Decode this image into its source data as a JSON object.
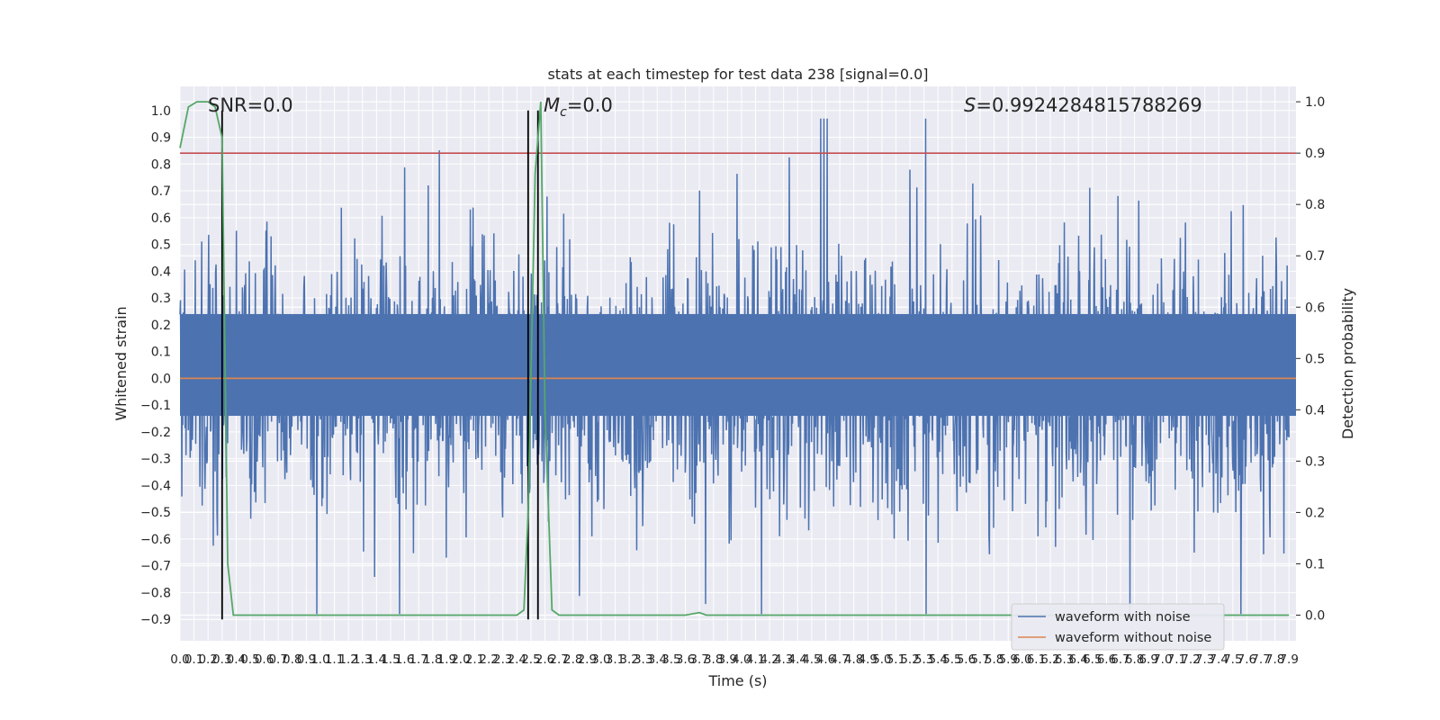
{
  "chart_data": {
    "type": "line",
    "title": "stats at each timestep for test data 238 [signal=0.0]",
    "xlabel": "Time (s)",
    "ylabel_left": "Whitened strain",
    "ylabel_right": "Detection probability",
    "xlim": [
      0.0,
      7.95
    ],
    "ylim_left": [
      -0.98,
      1.09
    ],
    "ylim_right": [
      -0.05,
      1.03
    ],
    "x_ticks": [
      "0.0",
      "0.1",
      "0.2",
      "0.3",
      "0.4",
      "0.5",
      "0.6",
      "0.7",
      "0.8",
      "0.9",
      "1.0",
      "1.1",
      "1.2",
      "1.3",
      "1.4",
      "1.5",
      "1.6",
      "1.7",
      "1.8",
      "1.9",
      "2.0",
      "2.1",
      "2.2",
      "2.3",
      "2.4",
      "2.5",
      "2.6",
      "2.7",
      "2.8",
      "2.9",
      "3.0",
      "3.1",
      "3.2",
      "3.3",
      "3.4",
      "3.5",
      "3.6",
      "3.7",
      "3.8",
      "3.9",
      "4.0",
      "4.1",
      "4.2",
      "4.3",
      "4.4",
      "4.5",
      "4.6",
      "4.7",
      "4.8",
      "4.9",
      "5.0",
      "5.1",
      "5.2",
      "5.3",
      "5.4",
      "5.5",
      "5.6",
      "5.7",
      "5.8",
      "5.9",
      "6.0",
      "6.1",
      "6.2",
      "6.3",
      "6.4",
      "6.5",
      "6.6",
      "6.7",
      "6.8",
      "6.9",
      "7.0",
      "7.1",
      "7.2",
      "7.3",
      "7.4",
      "7.5",
      "7.6",
      "7.7",
      "7.8",
      "7.9"
    ],
    "y_ticks_left": [
      "-0.9",
      "-0.8",
      "-0.7",
      "-0.6",
      "-0.5",
      "-0.4",
      "-0.3",
      "-0.2",
      "-0.1",
      "0.0",
      "0.1",
      "0.2",
      "0.3",
      "0.4",
      "0.5",
      "0.6",
      "0.7",
      "0.8",
      "0.9",
      "1.0"
    ],
    "y_ticks_right": [
      "0.0",
      "0.1",
      "0.2",
      "0.3",
      "0.4",
      "0.5",
      "0.6",
      "0.7",
      "0.8",
      "0.9",
      "1.0"
    ],
    "series": [
      {
        "name": "waveform with noise",
        "color": "#4c72b0",
        "description": "dense noise waveform, roughly within -0.88 to 1.0, max 1.0 near t=4.6 s"
      },
      {
        "name": "waveform without noise",
        "color": "#dd8452",
        "values": "constant 0.0"
      },
      {
        "name": "Detection probability",
        "color": "#55a868",
        "axis": "right",
        "x": [
          0.0,
          0.06,
          0.12,
          0.2,
          0.25,
          0.3,
          0.34,
          0.38,
          0.45,
          1.0,
          2.0,
          2.4,
          2.45,
          2.48,
          2.53,
          2.57,
          2.6,
          2.65,
          2.7,
          3.0,
          3.6,
          3.7,
          3.75,
          4.0,
          5.0,
          6.0,
          7.0,
          7.9
        ],
        "values": [
          0.91,
          0.99,
          1.0,
          1.0,
          0.99,
          0.93,
          0.1,
          0.0,
          0.0,
          0.0,
          0.0,
          0.0,
          0.01,
          0.2,
          0.86,
          1.0,
          0.4,
          0.01,
          0.0,
          0.0,
          0.0,
          0.005,
          0.0,
          0.0,
          0.0,
          0.0,
          0.0,
          0.0
        ]
      }
    ],
    "threshold_line": {
      "axis": "right",
      "value": 0.9,
      "color": "#c44e52"
    },
    "vertical_lines": [
      {
        "x": 0.3,
        "color": "#000000"
      },
      {
        "x": 2.48,
        "color": "#000000"
      },
      {
        "x": 2.55,
        "color": "#000000"
      }
    ],
    "annotations": [
      {
        "text": "SNR=0.0",
        "x": 0.19,
        "y": 1.0
      },
      {
        "text_math": "M",
        "subscript": "c",
        "text": "=0.0",
        "x": 2.59,
        "y": 1.0
      },
      {
        "text_math": "S",
        "text": "=0.9924284815788269",
        "x": 5.5,
        "y": 1.0
      }
    ],
    "legend": {
      "position": "lower-right",
      "entries": [
        "waveform with noise",
        "waveform without noise"
      ]
    },
    "grid": true,
    "colors": {
      "background": "#eaeaf2",
      "grid": "#ffffff"
    }
  }
}
